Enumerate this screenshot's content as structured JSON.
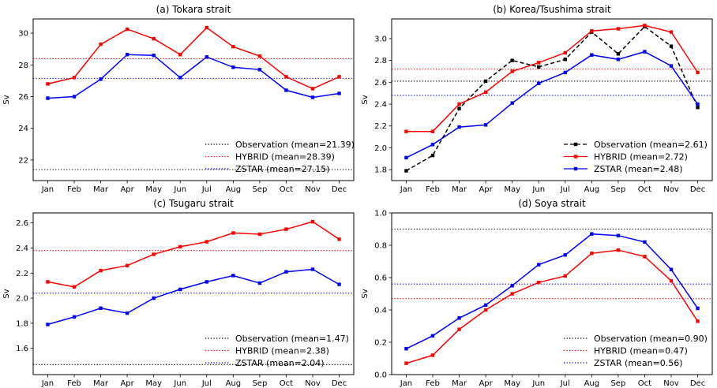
{
  "figure": {
    "background": "#ffffff",
    "ylabel": "Sv",
    "months": [
      "Jan",
      "Feb",
      "Mar",
      "Apr",
      "May",
      "Jun",
      "Jul",
      "Aug",
      "Sep",
      "Oct",
      "Nov",
      "Dec"
    ]
  },
  "colors": {
    "observation": "#000000",
    "hybrid": "#ff0000",
    "zstar": "#0000ff"
  },
  "chart_data": [
    {
      "id": "a",
      "type": "line",
      "title": "(a) Tokara strait",
      "xlabel": "",
      "ylabel": "Sv",
      "categories": [
        "Jan",
        "Feb",
        "Mar",
        "Apr",
        "May",
        "Jun",
        "Jul",
        "Aug",
        "Sep",
        "Oct",
        "Nov",
        "Dec"
      ],
      "ylim": [
        20.7,
        30.9
      ],
      "yticks": [
        22,
        24,
        26,
        28,
        30
      ],
      "ytick_labels": [
        "22",
        "24",
        "26",
        "28",
        "30"
      ],
      "grid": false,
      "series": [
        {
          "name": "HYBRID",
          "color": "#ff0000",
          "line": "solid",
          "marker": "square",
          "values": [
            26.8,
            27.2,
            29.3,
            30.25,
            29.65,
            28.65,
            30.35,
            29.15,
            28.55,
            27.25,
            26.5,
            27.25
          ]
        },
        {
          "name": "ZSTAR",
          "color": "#0000ff",
          "line": "solid",
          "marker": "square",
          "values": [
            25.9,
            26.0,
            27.1,
            28.65,
            28.6,
            27.2,
            28.5,
            27.85,
            27.7,
            26.4,
            25.95,
            26.2
          ]
        }
      ],
      "mean_lines": [
        {
          "name": "Observation",
          "value": 21.39,
          "color": "#000000"
        },
        {
          "name": "HYBRID",
          "value": 28.39,
          "color": "#ff0000"
        },
        {
          "name": "ZSTAR",
          "value": 27.15,
          "color": "#0000ff"
        }
      ],
      "legend": {
        "position": "lower-right",
        "entries": [
          {
            "label": "Observation (mean=21.39)",
            "color": "#000000",
            "sample": "dotted"
          },
          {
            "label": "HYBRID (mean=28.39)",
            "color": "#ff0000",
            "sample": "dotted"
          },
          {
            "label": "ZSTAR (mean=27.15)",
            "color": "#0000ff",
            "sample": "dotted"
          }
        ]
      }
    },
    {
      "id": "b",
      "type": "line",
      "title": "(b) Korea/Tsushima strait",
      "xlabel": "",
      "ylabel": "Sv",
      "categories": [
        "Jan",
        "Feb",
        "Mar",
        "Apr",
        "May",
        "Jun",
        "Jul",
        "Aug",
        "Sep",
        "Oct",
        "Nov",
        "Dec"
      ],
      "ylim": [
        1.7,
        3.18
      ],
      "yticks": [
        1.8,
        2.0,
        2.2,
        2.4,
        2.6,
        2.8,
        3.0
      ],
      "ytick_labels": [
        "1.8",
        "2.0",
        "2.2",
        "2.4",
        "2.6",
        "2.8",
        "3.0"
      ],
      "grid": false,
      "series": [
        {
          "name": "Observation",
          "color": "#000000",
          "line": "dashed",
          "marker": "square",
          "values": [
            1.79,
            1.93,
            2.36,
            2.61,
            2.8,
            2.74,
            2.81,
            3.06,
            2.86,
            3.11,
            2.93,
            2.37
          ]
        },
        {
          "name": "HYBRID",
          "color": "#ff0000",
          "line": "solid",
          "marker": "square",
          "values": [
            2.15,
            2.15,
            2.4,
            2.51,
            2.7,
            2.78,
            2.87,
            3.07,
            3.09,
            3.12,
            3.06,
            2.69
          ]
        },
        {
          "name": "ZSTAR",
          "color": "#0000ff",
          "line": "solid",
          "marker": "square",
          "values": [
            1.91,
            2.03,
            2.19,
            2.21,
            2.41,
            2.59,
            2.69,
            2.85,
            2.81,
            2.88,
            2.75,
            2.4
          ]
        }
      ],
      "mean_lines": [
        {
          "name": "Observation",
          "value": 2.61,
          "color": "#000000"
        },
        {
          "name": "HYBRID",
          "value": 2.72,
          "color": "#ff0000"
        },
        {
          "name": "ZSTAR",
          "value": 2.48,
          "color": "#0000ff"
        }
      ],
      "legend": {
        "position": "lower-right",
        "entries": [
          {
            "label": "Observation (mean=2.61)",
            "color": "#000000",
            "sample": "dashed-marker"
          },
          {
            "label": "HYBRID (mean=2.72)",
            "color": "#ff0000",
            "sample": "solid-marker"
          },
          {
            "label": "ZSTAR (mean=2.48)",
            "color": "#0000ff",
            "sample": "solid-marker"
          }
        ]
      }
    },
    {
      "id": "c",
      "type": "line",
      "title": "(c) Tsugaru strait",
      "xlabel": "",
      "ylabel": "Sv",
      "categories": [
        "Jan",
        "Feb",
        "Mar",
        "Apr",
        "May",
        "Jun",
        "Jul",
        "Aug",
        "Sep",
        "Oct",
        "Nov",
        "Dec"
      ],
      "ylim": [
        1.39,
        2.68
      ],
      "yticks": [
        1.6,
        1.8,
        2.0,
        2.2,
        2.4,
        2.6
      ],
      "ytick_labels": [
        "1.6",
        "1.8",
        "2.0",
        "2.2",
        "2.4",
        "2.6"
      ],
      "grid": false,
      "series": [
        {
          "name": "HYBRID",
          "color": "#ff0000",
          "line": "solid",
          "marker": "square",
          "values": [
            2.13,
            2.09,
            2.22,
            2.26,
            2.35,
            2.41,
            2.45,
            2.52,
            2.51,
            2.55,
            2.61,
            2.47
          ]
        },
        {
          "name": "ZSTAR",
          "color": "#0000ff",
          "line": "solid",
          "marker": "square",
          "values": [
            1.79,
            1.85,
            1.92,
            1.88,
            2.0,
            2.07,
            2.13,
            2.18,
            2.12,
            2.21,
            2.23,
            2.11
          ]
        }
      ],
      "mean_lines": [
        {
          "name": "Observation",
          "value": 1.47,
          "color": "#000000"
        },
        {
          "name": "HYBRID",
          "value": 2.38,
          "color": "#ff0000"
        },
        {
          "name": "ZSTAR",
          "value": 2.04,
          "color": "#0000ff"
        }
      ],
      "legend": {
        "position": "lower-right",
        "entries": [
          {
            "label": "Observation (mean=1.47)",
            "color": "#000000",
            "sample": "dotted"
          },
          {
            "label": "HYBRID (mean=2.38)",
            "color": "#ff0000",
            "sample": "dotted"
          },
          {
            "label": "ZSTAR (mean=2.04)",
            "color": "#0000ff",
            "sample": "dotted"
          }
        ]
      }
    },
    {
      "id": "d",
      "type": "line",
      "title": "(d) Soya strait",
      "xlabel": "",
      "ylabel": "Sv",
      "categories": [
        "Jan",
        "Feb",
        "Mar",
        "Apr",
        "May",
        "Jun",
        "Jul",
        "Aug",
        "Sep",
        "Oct",
        "Nov",
        "Dec"
      ],
      "ylim": [
        0.0,
        1.0
      ],
      "yticks": [
        0.0,
        0.2,
        0.4,
        0.6,
        0.8,
        1.0
      ],
      "ytick_labels": [
        "0.0",
        "0.2",
        "0.4",
        "0.6",
        "0.8",
        "1.0"
      ],
      "grid": false,
      "series": [
        {
          "name": "HYBRID",
          "color": "#ff0000",
          "line": "solid",
          "marker": "square",
          "values": [
            0.07,
            0.12,
            0.28,
            0.4,
            0.5,
            0.57,
            0.61,
            0.75,
            0.77,
            0.73,
            0.58,
            0.33
          ]
        },
        {
          "name": "ZSTAR",
          "color": "#0000ff",
          "line": "solid",
          "marker": "square",
          "values": [
            0.16,
            0.24,
            0.35,
            0.43,
            0.55,
            0.68,
            0.74,
            0.87,
            0.86,
            0.82,
            0.65,
            0.41
          ]
        }
      ],
      "mean_lines": [
        {
          "name": "Observation",
          "value": 0.9,
          "color": "#000000"
        },
        {
          "name": "HYBRID",
          "value": 0.47,
          "color": "#ff0000"
        },
        {
          "name": "ZSTAR",
          "value": 0.56,
          "color": "#0000ff"
        }
      ],
      "legend": {
        "position": "lower-right",
        "entries": [
          {
            "label": "Observation (mean=0.90)",
            "color": "#000000",
            "sample": "dotted"
          },
          {
            "label": "HYBRID (mean=0.47)",
            "color": "#ff0000",
            "sample": "dotted"
          },
          {
            "label": "ZSTAR (mean=0.56)",
            "color": "#0000ff",
            "sample": "dotted"
          }
        ]
      }
    }
  ]
}
